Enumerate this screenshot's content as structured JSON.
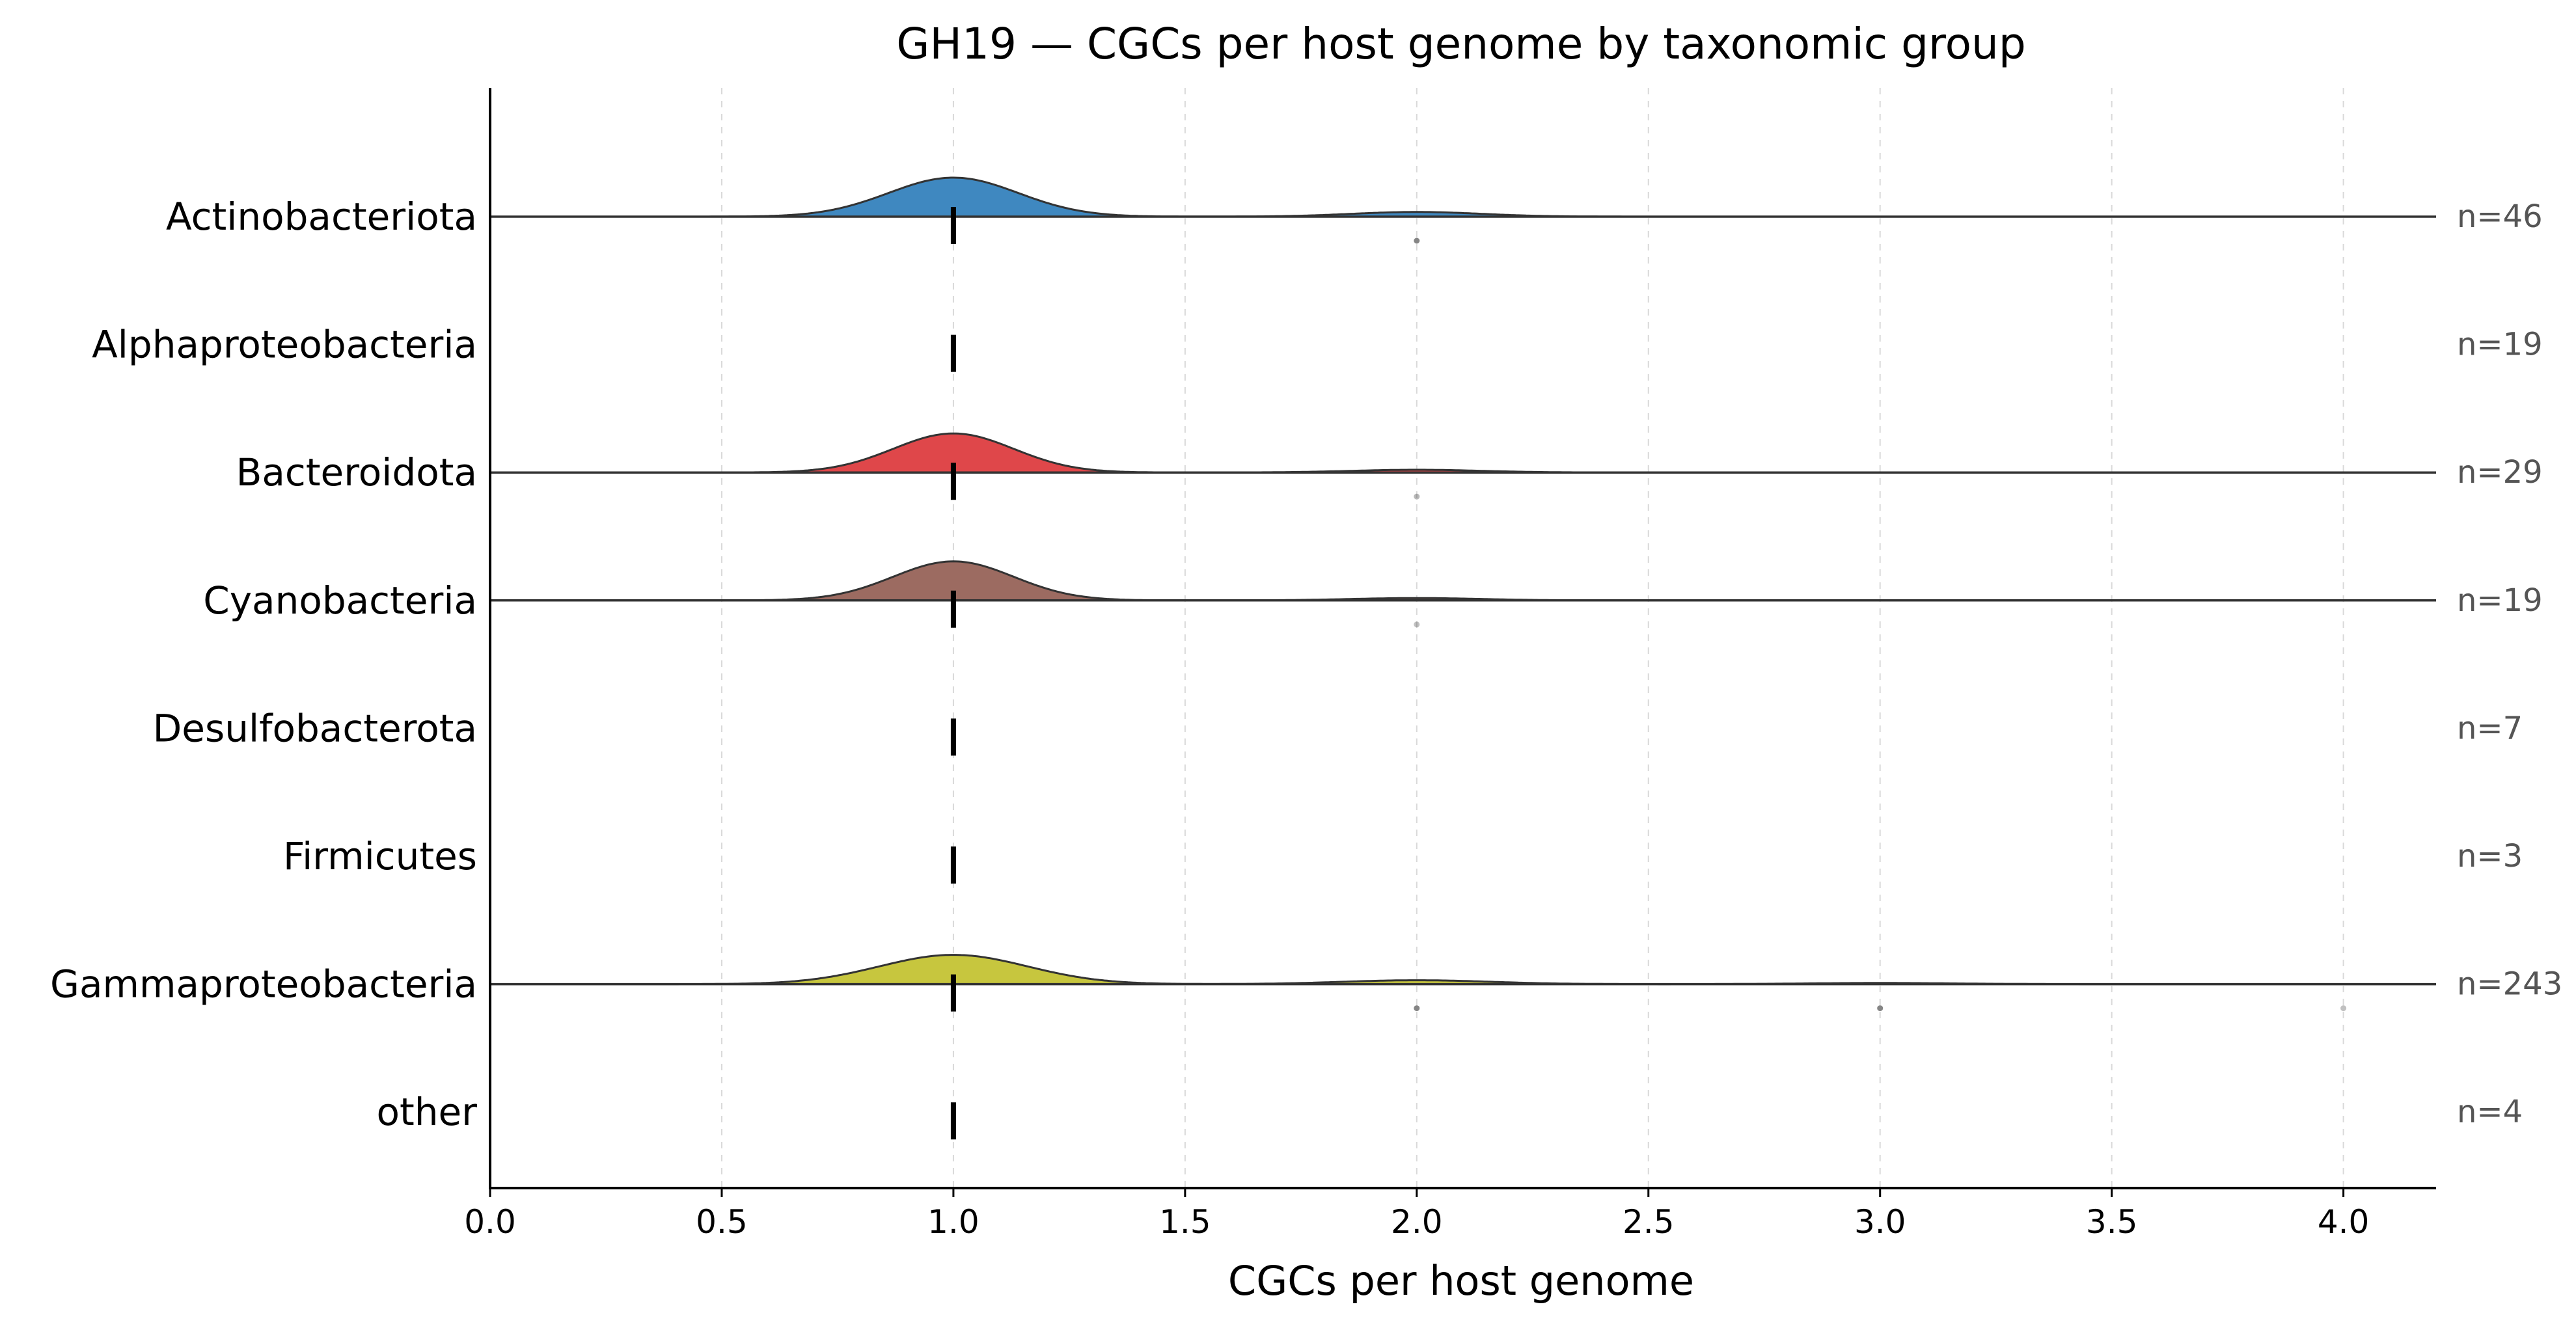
{
  "chart_data": {
    "type": "ridgeline",
    "title": "GH19 — CGCs per host genome by taxonomic group",
    "xlabel": "CGCs per host genome",
    "ylabel": "",
    "xlim": [
      0.0,
      4.2
    ],
    "xticks": [
      0.0,
      0.5,
      1.0,
      1.5,
      2.0,
      2.5,
      3.0,
      3.5,
      4.0
    ],
    "xtick_labels": [
      "0.0",
      "0.5",
      "1.0",
      "1.5",
      "2.0",
      "2.5",
      "3.0",
      "3.5",
      "4.0"
    ],
    "grid": "vertical dashed",
    "series": [
      {
        "category": "Actinobacteriota",
        "n_label": "n=46",
        "n": 46,
        "color": "#3f88c0",
        "median": 1.0,
        "has_density": true,
        "peaks": [
          {
            "x": 1.0,
            "height": 1.0,
            "sigma": 0.14
          },
          {
            "x": 2.0,
            "height": 0.12,
            "sigma": 0.14
          }
        ],
        "points": [
          {
            "x": 2.0,
            "opacity": 0.6
          }
        ]
      },
      {
        "category": "Alphaproteobacteria",
        "n_label": "n=19",
        "n": 19,
        "color": "#ff7f0e",
        "median": 1.0,
        "has_density": false,
        "peaks": [],
        "points": []
      },
      {
        "category": "Bacteroidota",
        "n_label": "n=29",
        "n": 29,
        "color": "#df474a",
        "median": 1.0,
        "has_density": true,
        "peaks": [
          {
            "x": 1.0,
            "height": 1.0,
            "sigma": 0.13
          },
          {
            "x": 2.0,
            "height": 0.07,
            "sigma": 0.14
          }
        ],
        "points": [
          {
            "x": 2.0,
            "opacity": 0.35
          }
        ]
      },
      {
        "category": "Cyanobacteria",
        "n_label": "n=19",
        "n": 19,
        "color": "#9c6b61",
        "median": 1.0,
        "has_density": true,
        "peaks": [
          {
            "x": 1.0,
            "height": 1.0,
            "sigma": 0.13
          },
          {
            "x": 2.0,
            "height": 0.06,
            "sigma": 0.14
          }
        ],
        "points": [
          {
            "x": 2.0,
            "opacity": 0.3
          }
        ]
      },
      {
        "category": "Desulfobacterota",
        "n_label": "n=7",
        "n": 7,
        "color": "#e377c2",
        "median": 1.0,
        "has_density": false,
        "peaks": [],
        "points": []
      },
      {
        "category": "Firmicutes",
        "n_label": "n=3",
        "n": 3,
        "color": "#7f7f7f",
        "median": 1.0,
        "has_density": false,
        "peaks": [],
        "points": []
      },
      {
        "category": "Gammaproteobacteria",
        "n_label": "n=243",
        "n": 243,
        "color": "#c7c63e",
        "median": 1.0,
        "has_density": true,
        "peaks": [
          {
            "x": 1.0,
            "height": 0.75,
            "sigma": 0.16
          },
          {
            "x": 2.0,
            "height": 0.1,
            "sigma": 0.16
          },
          {
            "x": 3.0,
            "height": 0.03,
            "sigma": 0.16
          }
        ],
        "points": [
          {
            "x": 2.0,
            "opacity": 0.6
          },
          {
            "x": 3.0,
            "opacity": 0.6
          },
          {
            "x": 4.0,
            "opacity": 0.3
          }
        ]
      },
      {
        "category": "other",
        "n_label": "n=4",
        "n": 4,
        "color": "#17becf",
        "median": 1.0,
        "has_density": false,
        "peaks": [],
        "points": []
      }
    ]
  }
}
